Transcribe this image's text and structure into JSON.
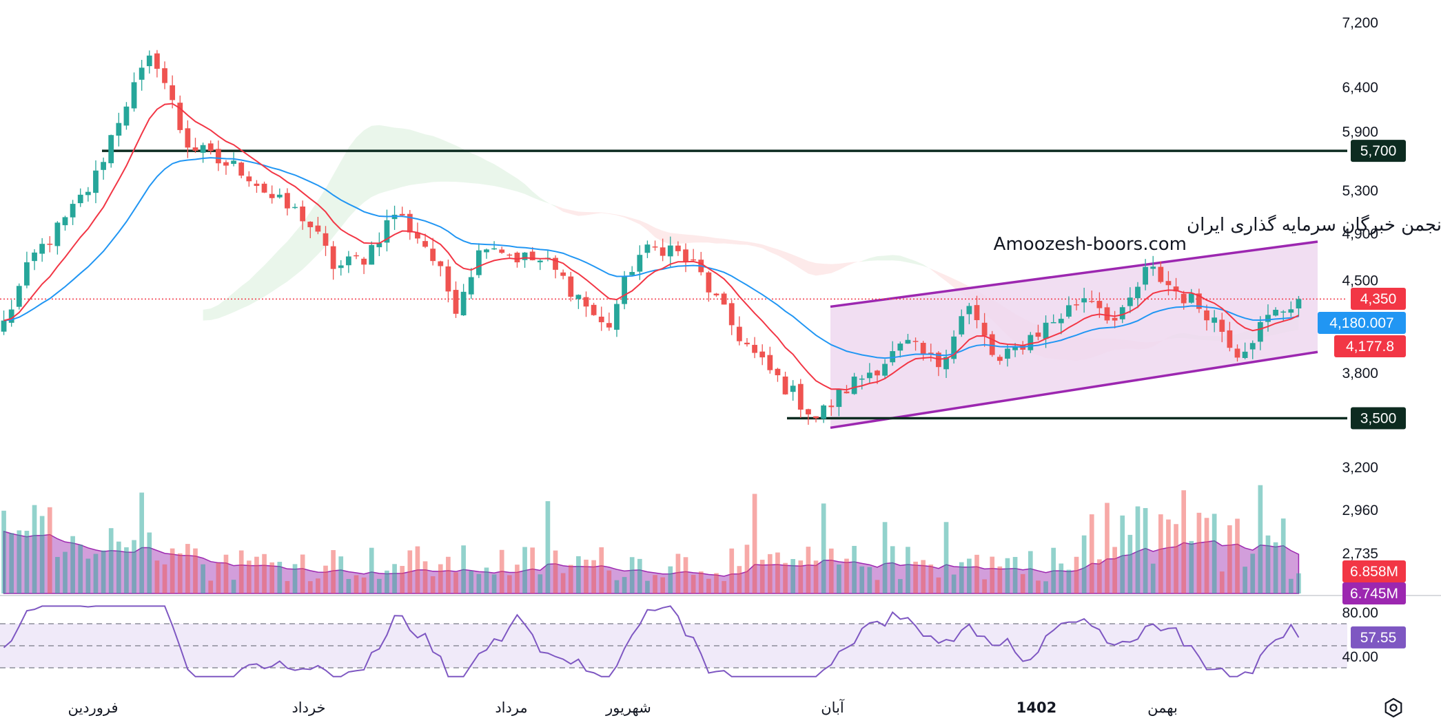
{
  "watermark": {
    "line1": "انجمن خبرگان سرمایه گذاری ایران",
    "line2": "Amoozesh-boors.com"
  },
  "chart_data": {
    "type": "candlestick",
    "price_axis": {
      "ticks": [
        "7,200",
        "6,400",
        "5,900",
        "5,300",
        "4,900",
        "4,500",
        "3,800",
        "3,200",
        "2,960",
        "2,735"
      ],
      "tick_values": [
        7200,
        6400,
        5900,
        5300,
        4900,
        4500,
        3800,
        3200,
        2960,
        2735
      ],
      "scale": "log"
    },
    "time_axis": {
      "labels": [
        "فروردین",
        "خرداد",
        "مرداد",
        "شهریور",
        "آبان",
        "1402",
        "بهمن"
      ],
      "bold_label": "1402"
    },
    "horizontal_levels": [
      {
        "value": 5700,
        "label": "5,700",
        "color": "#0d2b20"
      },
      {
        "value": 3500,
        "label": "3,500",
        "color": "#0d2b20"
      }
    ],
    "price_badges": [
      {
        "label": "4,350",
        "value": 4350,
        "color": "#f23645"
      },
      {
        "label": "4,180.007",
        "value": 4180.007,
        "color": "#2196f3"
      },
      {
        "label": "4,177.8",
        "value": 4177.8,
        "color": "#f23645"
      }
    ],
    "last_price": 4350,
    "volume_badges": [
      {
        "label": "6.858M",
        "color": "#f23645"
      },
      {
        "label": "6.745M",
        "color": "#9c27b0"
      }
    ],
    "rsi": {
      "ticks": [
        "80.00",
        "40.00"
      ],
      "levels": [
        70,
        50,
        30
      ],
      "current_label": "57.55",
      "current": 57.55,
      "color": "#7e57c2"
    },
    "channel": {
      "color": "#9c27b0",
      "upper": {
        "start": 4290,
        "end": 4830
      },
      "lower": {
        "start": 3440,
        "end": 3950
      }
    },
    "price_range_note": "approx. OHLC read from candles",
    "ohlc_anchor_path": [
      4160,
      4700,
      5000,
      5400,
      6200,
      6800,
      5800,
      5600,
      5500,
      5200,
      5050,
      4600,
      4700,
      5100,
      4800,
      4300,
      4850,
      4700,
      4650,
      4400,
      4100,
      4700,
      4800,
      4600,
      4200,
      3900,
      3700,
      3500,
      3700,
      3850,
      4000,
      3850,
      4300,
      3850,
      4050,
      4200,
      4400,
      4150,
      4600,
      4400,
      4250,
      3950,
      4200,
      4350
    ]
  },
  "colors": {
    "up": "#26a69a",
    "down": "#ef5350",
    "ema_fast": "#f23645",
    "ema_slow": "#2196f3",
    "volume_ma": "#9c27b0",
    "cloud_bull": "#e8f5e9",
    "cloud_bear": "#fde8e8",
    "channel_fill": "#efd8f0",
    "level_line": "#0d2b20",
    "rsi_band": "#f0eaf9"
  },
  "icons": {
    "settings": "hexagon-settings-icon"
  }
}
